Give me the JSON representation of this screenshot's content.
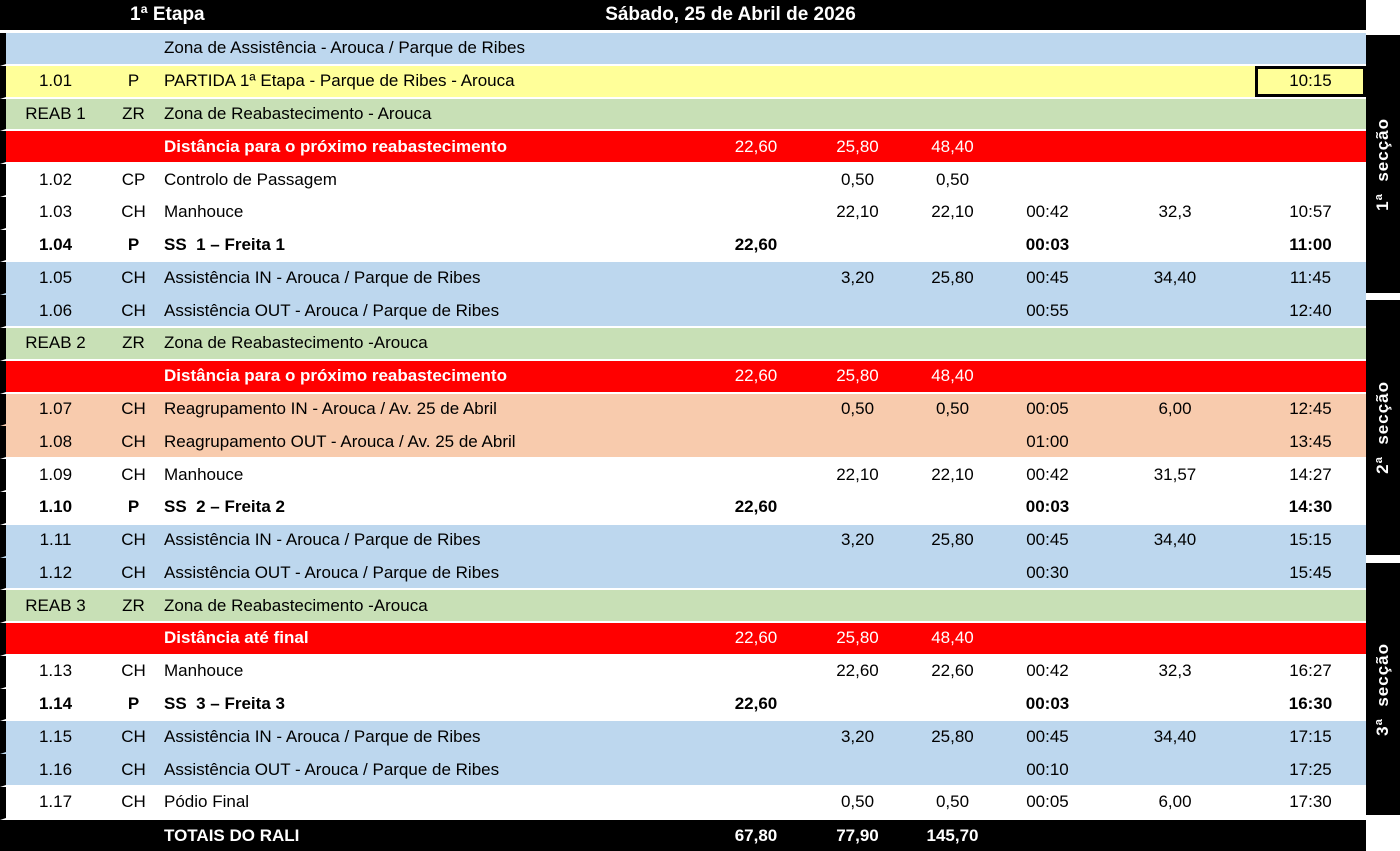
{
  "header": {
    "stage": "1ª Etapa",
    "date": "Sábado, 25 de Abril de 2026"
  },
  "sections": [
    {
      "label": "1ª  secção"
    },
    {
      "label": "2ª  secção"
    },
    {
      "label": "3ª  secção"
    }
  ],
  "totals": {
    "label": "TOTAIS DO RALI",
    "ss": "67,80",
    "liaison": "77,90",
    "total": "145,70"
  },
  "colors": {
    "assistance_blue": "#BDD7EE",
    "start_yellow": "#FFFF99",
    "refuel_green": "#C8E0B6",
    "distance_red": "#FF0000",
    "regroup_salmon": "#F8CBAD",
    "header_black": "#000000"
  },
  "rows": [
    {
      "bg": "blue",
      "desc": "Zona de Assistência - Arouca / Parque de Ribes"
    },
    {
      "bg": "yellow",
      "id": "1.01",
      "type": "P",
      "desc": "PARTIDA 1ª Etapa - Parque de Ribes - Arouca",
      "t2": "10:15",
      "boxed": true
    },
    {
      "bg": "green",
      "id": "REAB 1",
      "type": "ZR",
      "desc": "Zona de Reabastecimento - Arouca"
    },
    {
      "bg": "red",
      "desc": "Distância para o próximo reabastecimento",
      "ss": "22,60",
      "liaison": "25,80",
      "total": "48,40"
    },
    {
      "bg": "white",
      "id": "1.02",
      "type": "CP",
      "desc": "Controlo de Passagem",
      "liaison": "0,50",
      "total": "0,50"
    },
    {
      "bg": "white",
      "id": "1.03",
      "type": "CH",
      "desc": "Manhouce",
      "liaison": "22,10",
      "total": "22,10",
      "t1": "00:42",
      "avg": "32,3",
      "t2": "10:57"
    },
    {
      "bg": "white",
      "id": "1.04",
      "type": "P",
      "desc": "SS  1 – Freita 1",
      "ss": "22,60",
      "t1": "00:03",
      "t2": "11:00",
      "bold": true
    },
    {
      "bg": "blue",
      "id": "1.05",
      "type": "CH",
      "desc": "Assistência IN - Arouca / Parque de Ribes",
      "liaison": "3,20",
      "total": "25,80",
      "t1": "00:45",
      "avg": "34,40",
      "t2": "11:45",
      "merge": true
    },
    {
      "bg": "blue",
      "id": "1.06",
      "type": "CH",
      "desc": "Assistência OUT - Arouca / Parque de Ribes",
      "t1": "00:55",
      "t2": "12:40"
    },
    {
      "bg": "green",
      "id": "REAB 2",
      "type": "ZR",
      "desc": "Zona de Reabastecimento -Arouca"
    },
    {
      "bg": "red",
      "desc": "Distância para o próximo reabastecimento",
      "ss": "22,60",
      "liaison": "25,80",
      "total": "48,40"
    },
    {
      "bg": "salmon",
      "id": "1.07",
      "type": "CH",
      "desc": "Reagrupamento IN - Arouca / Av. 25 de Abril",
      "liaison": "0,50",
      "total": "0,50",
      "t1": "00:05",
      "avg": "6,00",
      "t2": "12:45",
      "merge": true
    },
    {
      "bg": "salmon",
      "id": "1.08",
      "type": "CH",
      "desc": "Reagrupamento OUT - Arouca / Av. 25 de Abril",
      "t1": "01:00",
      "t2": "13:45"
    },
    {
      "bg": "white",
      "id": "1.09",
      "type": "CH",
      "desc": "Manhouce",
      "liaison": "22,10",
      "total": "22,10",
      "t1": "00:42",
      "avg": "31,57",
      "t2": "14:27"
    },
    {
      "bg": "white",
      "id": "1.10",
      "type": "P",
      "desc": "SS  2 – Freita 2",
      "ss": "22,60",
      "t1": "00:03",
      "t2": "14:30",
      "bold": true
    },
    {
      "bg": "blue",
      "id": "1.11",
      "type": "CH",
      "desc": "Assistência IN - Arouca / Parque de Ribes",
      "liaison": "3,20",
      "total": "25,80",
      "t1": "00:45",
      "avg": "34,40",
      "t2": "15:15",
      "merge": true
    },
    {
      "bg": "blue",
      "id": "1.12",
      "type": "CH",
      "desc": "Assistência OUT - Arouca / Parque de Ribes",
      "t1": "00:30",
      "t2": "15:45"
    },
    {
      "bg": "green",
      "id": "REAB 3",
      "type": "ZR",
      "desc": "Zona de Reabastecimento -Arouca"
    },
    {
      "bg": "red",
      "desc": "Distância até final",
      "ss": "22,60",
      "liaison": "25,80",
      "total": "48,40"
    },
    {
      "bg": "white",
      "id": "1.13",
      "type": "CH",
      "desc": "Manhouce",
      "liaison": "22,60",
      "total": "22,60",
      "t1": "00:42",
      "avg": "32,3",
      "t2": "16:27"
    },
    {
      "bg": "white",
      "id": "1.14",
      "type": "P",
      "desc": "SS  3 – Freita 3",
      "ss": "22,60",
      "t1": "00:03",
      "t2": "16:30",
      "bold": true
    },
    {
      "bg": "blue",
      "id": "1.15",
      "type": "CH",
      "desc": "Assistência IN - Arouca / Parque de Ribes",
      "liaison": "3,20",
      "total": "25,80",
      "t1": "00:45",
      "avg": "34,40",
      "t2": "17:15",
      "merge": true
    },
    {
      "bg": "blue",
      "id": "1.16",
      "type": "CH",
      "desc": "Assistência OUT - Arouca / Parque de Ribes",
      "t1": "00:10",
      "t2": "17:25"
    },
    {
      "bg": "white",
      "id": "1.17",
      "type": "CH",
      "desc": "Pódio Final",
      "liaison": "0,50",
      "total": "0,50",
      "t1": "00:05",
      "avg": "6,00",
      "t2": "17:30"
    }
  ]
}
